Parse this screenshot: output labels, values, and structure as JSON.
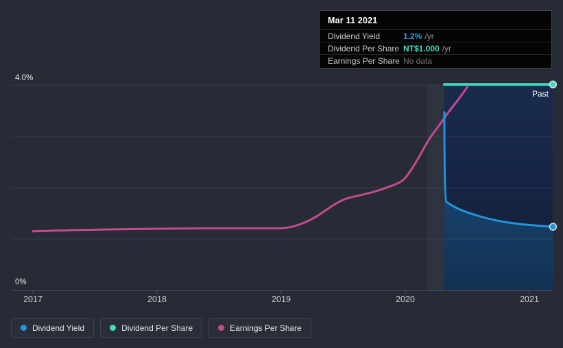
{
  "tooltip": {
    "date": "Mar 11 2021",
    "rows": [
      {
        "label": "Dividend Yield",
        "value": "1.2%",
        "suffix": "/yr",
        "color": "#2aa0e8"
      },
      {
        "label": "Dividend Per Share",
        "value": "NT$1.000",
        "suffix": "/yr",
        "color": "#45d9c2"
      },
      {
        "label": "Earnings Per Share",
        "value": "No data",
        "suffix": "",
        "color": "#75787e"
      }
    ]
  },
  "axis": {
    "y_top_label": "4.0%",
    "y_bottom_label": "0%",
    "past_label": "Past"
  },
  "legend": {
    "items": [
      {
        "label": "Dividend Yield",
        "color": "#2196df"
      },
      {
        "label": "Dividend Per Share",
        "color": "#45d9c2"
      },
      {
        "label": "Earnings Per Share",
        "color": "#c64a90"
      }
    ]
  },
  "theme": {
    "background": "#262b36",
    "grid_color": "rgba(255,255,255,0.08)",
    "axis_color": "#4e545f",
    "highlight_band_color": "rgba(205,220,255,0.05)",
    "past_region_top": "#1b2b4d",
    "past_region_bottom": "#0f1e38"
  },
  "chart_data": {
    "type": "line",
    "x_ticks": [
      2017,
      2018,
      2019,
      2020,
      2021
    ],
    "x_tick_labels": [
      "2017",
      "2018",
      "2019",
      "2020",
      "2021"
    ],
    "xlim": [
      2016.82,
      2021.19
    ],
    "ylim": [
      0,
      4
    ],
    "y_axis_unit": "%",
    "y_tick_labels": [
      "0%",
      "4.0%"
    ],
    "grid_values": [
      1,
      2,
      3,
      4
    ],
    "grid": "horizontal-only",
    "legend_position": "bottom",
    "past_region_start_x": 2020.315,
    "highlight_band_x": [
      2020.177,
      2020.315
    ],
    "annotations": [
      {
        "text": "Past",
        "x": 2021.15,
        "y": 3.76
      }
    ],
    "hover_point": {
      "date": "Mar 11 2021",
      "dividend_yield": 1.2,
      "dividend_per_share": "NT$1.000",
      "earnings_per_share": null
    },
    "series": [
      {
        "name": "Dividend Yield",
        "color": "#2196df",
        "unit": "%",
        "area": true,
        "end_marker": true,
        "stroke_width": 3,
        "points": [
          [
            2020.315,
            3.47
          ],
          [
            2020.315,
            1.76
          ],
          [
            2020.35,
            1.69
          ],
          [
            2020.44,
            1.57
          ],
          [
            2020.55,
            1.48
          ],
          [
            2020.66,
            1.4
          ],
          [
            2020.8,
            1.33
          ],
          [
            2020.93,
            1.29
          ],
          [
            2021.07,
            1.26
          ],
          [
            2021.19,
            1.24
          ]
        ]
      },
      {
        "name": "Dividend Per Share",
        "color": "#45d9c2",
        "unit": "NT$",
        "area": false,
        "end_marker": true,
        "stroke_width": 4,
        "points": [
          [
            2020.315,
            4.01
          ],
          [
            2021.19,
            4.01
          ]
        ]
      },
      {
        "name": "Earnings Per Share",
        "color": "#c64a90",
        "unit": "NT$",
        "area": false,
        "end_marker": false,
        "stroke_width": 3,
        "points": [
          [
            2017.0,
            1.15
          ],
          [
            2017.23,
            1.17
          ],
          [
            2017.45,
            1.18
          ],
          [
            2017.67,
            1.19
          ],
          [
            2018.0,
            1.2
          ],
          [
            2018.28,
            1.21
          ],
          [
            2018.56,
            1.21
          ],
          [
            2018.83,
            1.21
          ],
          [
            2019.04,
            1.21
          ],
          [
            2019.15,
            1.28
          ],
          [
            2019.25,
            1.39
          ],
          [
            2019.33,
            1.51
          ],
          [
            2019.43,
            1.68
          ],
          [
            2019.52,
            1.79
          ],
          [
            2019.61,
            1.84
          ],
          [
            2019.7,
            1.89
          ],
          [
            2019.79,
            1.95
          ],
          [
            2019.88,
            2.03
          ],
          [
            2019.98,
            2.12
          ],
          [
            2020.05,
            2.35
          ],
          [
            2020.12,
            2.63
          ],
          [
            2020.19,
            2.95
          ],
          [
            2020.27,
            3.2
          ],
          [
            2020.35,
            3.48
          ],
          [
            2020.43,
            3.72
          ],
          [
            2020.5,
            3.96
          ]
        ]
      }
    ]
  }
}
